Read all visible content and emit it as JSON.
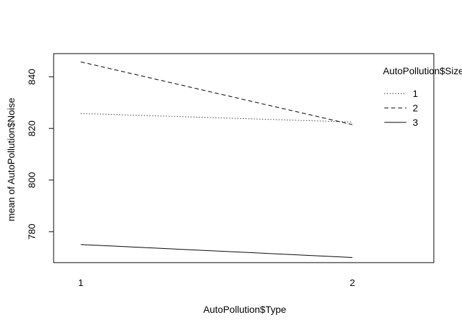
{
  "chart_data": {
    "type": "line",
    "title": "",
    "xlabel": "AutoPollution$Type",
    "ylabel": "mean of  AutoPollution$Noise",
    "x": [
      1,
      2
    ],
    "x_tick_labels": [
      "1",
      "2"
    ],
    "xlim": [
      0.9,
      2.3
    ],
    "ylim": [
      768,
      849
    ],
    "y_ticks": [
      780,
      800,
      820,
      840
    ],
    "y_tick_labels": [
      "780",
      "800",
      "820",
      "840"
    ],
    "grid": false,
    "legend": {
      "title": "AutoPollution$Size",
      "placement": "top-right",
      "entries": [
        "1",
        "2",
        "3"
      ]
    },
    "series": [
      {
        "name": "1",
        "values": [
          825.8,
          822.5
        ],
        "line_style": "dotted",
        "color": "#000000"
      },
      {
        "name": "2",
        "values": [
          845.8,
          821.5
        ],
        "line_style": "dashed",
        "color": "#000000"
      },
      {
        "name": "3",
        "values": [
          775.0,
          770.0
        ],
        "line_style": "solid",
        "color": "#000000"
      }
    ]
  }
}
